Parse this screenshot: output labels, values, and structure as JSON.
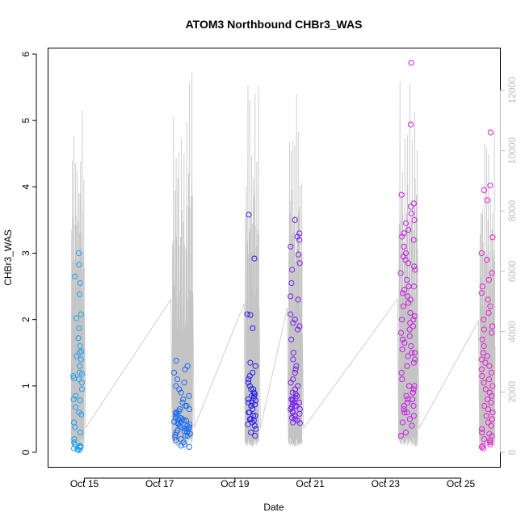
{
  "chart_data": {
    "type": "scatter",
    "title": "ATOM3 Northbound CHBr3_WAS",
    "xlabel": "Date",
    "ylabel": "CHBr3_WAS",
    "x_tick_labels": [
      "Oct 15",
      "Oct 17",
      "Oct 19",
      "Oct 21",
      "Oct 23",
      "Oct 25"
    ],
    "x_tick_days": [
      15,
      17,
      19,
      21,
      23,
      25
    ],
    "xlim_days": [
      14.3,
      26.2
    ],
    "ylim": [
      0,
      6
    ],
    "y_ticks": [
      0,
      1,
      2,
      3,
      4,
      5,
      6
    ],
    "right_axis": {
      "color": "#bdbdbd",
      "ylim": [
        0,
        13200
      ],
      "ticks": [
        0,
        2000,
        4000,
        6000,
        8000,
        10000,
        12000
      ],
      "series": "altitude trace (grey line)"
    },
    "clusters": [
      {
        "day": 14.82,
        "half_width": 0.12,
        "color": "#1ea0f0",
        "alt_peak": 11600,
        "values": [
          3.0,
          2.83,
          2.65,
          2.55,
          2.38,
          2.08,
          2.02,
          1.87,
          1.72,
          1.6,
          1.52,
          1.5,
          1.45,
          1.4,
          1.3,
          1.2,
          1.18,
          1.15,
          1.12,
          1.1,
          1.05,
          0.95,
          0.85,
          0.8,
          0.78,
          0.68,
          0.6,
          0.57,
          0.45,
          0.38,
          0.3,
          0.2,
          0.15,
          0.1,
          0.08,
          0.07,
          0.05,
          0.04,
          0.03,
          0.06,
          0.09,
          0.12
        ]
      },
      {
        "day": 17.6,
        "half_width": 0.22,
        "color": "#1a6cf0",
        "alt_peak": 12700,
        "values": [
          1.38,
          1.3,
          1.25,
          1.2,
          1.1,
          1.05,
          1.0,
          0.95,
          0.9,
          0.85,
          0.8,
          0.75,
          0.7,
          0.65,
          0.62,
          0.6,
          0.58,
          0.55,
          0.52,
          0.5,
          0.48,
          0.46,
          0.44,
          0.42,
          0.4,
          0.38,
          0.36,
          0.35,
          0.33,
          0.3,
          0.28,
          0.26,
          0.25,
          0.22,
          0.2,
          0.18,
          0.15,
          0.12,
          0.1,
          0.08,
          0.6,
          0.55,
          0.5,
          0.45,
          0.4,
          0.35,
          0.3,
          0.25,
          0.52,
          0.48,
          0.42,
          0.38,
          0.32,
          0.28,
          0.7,
          0.65
        ]
      },
      {
        "day": 19.45,
        "half_width": 0.13,
        "color": "#2a1ef0",
        "alt_peak": 12300,
        "values": [
          3.58,
          2.92,
          2.08,
          2.07,
          1.87,
          1.35,
          1.3,
          1.2,
          1.15,
          1.1,
          1.05,
          1.0,
          0.95,
          0.9,
          0.88,
          0.85,
          0.82,
          0.8,
          0.78,
          0.75,
          0.72,
          0.7,
          0.65,
          0.6,
          0.55,
          0.5,
          0.48,
          0.45,
          0.42,
          0.4,
          0.35,
          0.3,
          0.25,
          0.5,
          0.55,
          0.6,
          0.7,
          0.75,
          0.85,
          0.95
        ]
      },
      {
        "day": 20.6,
        "half_width": 0.13,
        "color": "#7b1ef0",
        "alt_peak": 12000,
        "values": [
          3.5,
          3.3,
          3.25,
          3.2,
          3.1,
          2.98,
          2.85,
          2.75,
          2.55,
          2.35,
          2.3,
          2.08,
          2.0,
          1.95,
          1.9,
          1.85,
          1.7,
          1.5,
          1.4,
          1.3,
          1.25,
          1.2,
          1.1,
          1.05,
          1.0,
          0.95,
          0.9,
          0.88,
          0.85,
          0.82,
          0.8,
          0.78,
          0.75,
          0.72,
          0.7,
          0.68,
          0.65,
          0.62,
          0.6,
          0.58,
          0.55,
          0.52,
          0.5,
          0.48,
          0.45,
          0.44,
          0.7,
          0.65,
          0.75,
          0.8
        ]
      },
      {
        "day": 23.6,
        "half_width": 0.2,
        "color": "#c81ee6",
        "alt_peak": 12700,
        "values": [
          5.87,
          4.94,
          3.88,
          3.75,
          3.7,
          3.6,
          3.5,
          3.45,
          3.35,
          3.3,
          3.25,
          3.2,
          3.1,
          3.0,
          2.95,
          2.9,
          2.85,
          2.8,
          2.75,
          2.7,
          2.6,
          2.5,
          2.45,
          2.4,
          2.35,
          2.3,
          2.25,
          2.2,
          2.1,
          2.05,
          2.0,
          1.95,
          1.9,
          1.85,
          1.8,
          1.75,
          1.7,
          1.65,
          1.6,
          1.55,
          1.5,
          1.45,
          1.4,
          1.35,
          1.3,
          1.2,
          1.1,
          1.0,
          0.95,
          0.9,
          0.85,
          0.8,
          0.75,
          0.7,
          0.65,
          0.6,
          0.55,
          0.5,
          0.45,
          0.4,
          0.3,
          0.25,
          0.6,
          0.7,
          0.8,
          0.9,
          1.0,
          1.5,
          2.0,
          2.5
        ]
      },
      {
        "day": 25.7,
        "half_width": 0.15,
        "color": "#e61ed2",
        "alt_peak": 10900,
        "values": [
          4.82,
          4.02,
          3.95,
          3.8,
          3.24,
          3.0,
          2.9,
          2.7,
          2.6,
          2.5,
          2.4,
          2.3,
          2.2,
          2.1,
          2.0,
          1.9,
          1.85,
          1.8,
          1.7,
          1.6,
          1.5,
          1.45,
          1.4,
          1.35,
          1.3,
          1.25,
          1.2,
          1.15,
          1.1,
          1.05,
          1.0,
          0.95,
          0.9,
          0.85,
          0.8,
          0.75,
          0.7,
          0.65,
          0.6,
          0.55,
          0.5,
          0.45,
          0.4,
          0.35,
          0.3,
          0.25,
          0.2,
          0.15,
          0.1,
          0.08,
          0.06,
          0.12,
          0.18,
          0.28
        ]
      }
    ]
  }
}
